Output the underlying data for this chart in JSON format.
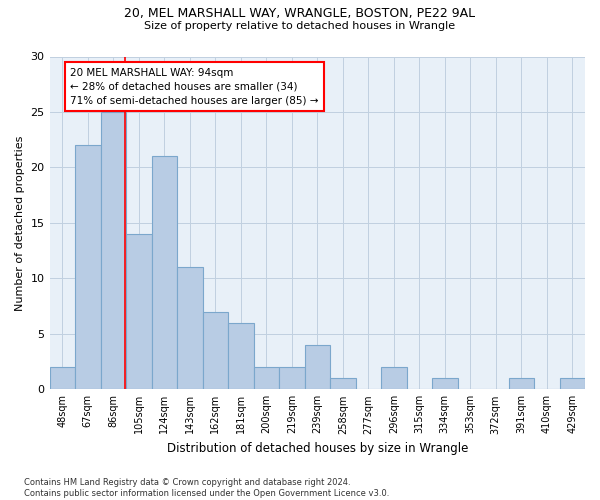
{
  "title1": "20, MEL MARSHALL WAY, WRANGLE, BOSTON, PE22 9AL",
  "title2": "Size of property relative to detached houses in Wrangle",
  "xlabel": "Distribution of detached houses by size in Wrangle",
  "ylabel": "Number of detached properties",
  "categories": [
    "48sqm",
    "67sqm",
    "86sqm",
    "105sqm",
    "124sqm",
    "143sqm",
    "162sqm",
    "181sqm",
    "200sqm",
    "219sqm",
    "239sqm",
    "258sqm",
    "277sqm",
    "296sqm",
    "315sqm",
    "334sqm",
    "353sqm",
    "372sqm",
    "391sqm",
    "410sqm",
    "429sqm"
  ],
  "values": [
    2,
    22,
    25,
    14,
    21,
    11,
    7,
    6,
    2,
    2,
    4,
    1,
    0,
    2,
    0,
    1,
    0,
    0,
    1,
    0,
    1
  ],
  "bar_color": "#b8cce4",
  "bar_edge_color": "#7ba7cc",
  "bar_linewidth": 0.8,
  "grid_color": "#c0d0e0",
  "background_color": "#e8f0f8",
  "red_line_x": 2.47,
  "annotation_box_text": "20 MEL MARSHALL WAY: 94sqm\n← 28% of detached houses are smaller (34)\n71% of semi-detached houses are larger (85) →",
  "footer_text": "Contains HM Land Registry data © Crown copyright and database right 2024.\nContains public sector information licensed under the Open Government Licence v3.0.",
  "ylim": [
    0,
    30
  ],
  "yticks": [
    0,
    5,
    10,
    15,
    20,
    25,
    30
  ]
}
